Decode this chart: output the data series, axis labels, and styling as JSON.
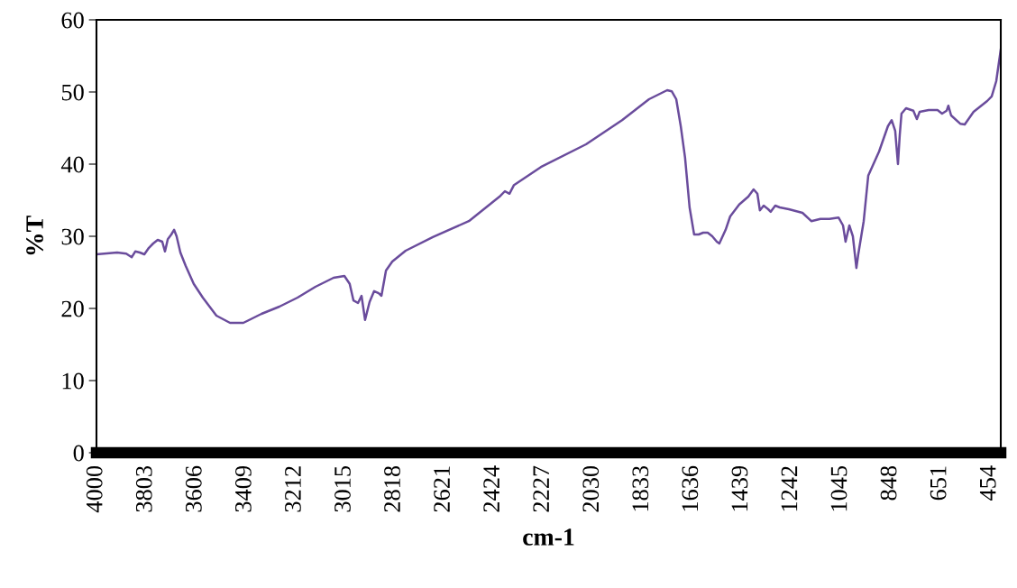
{
  "chart_data": {
    "type": "line",
    "xlabel": "cm-1",
    "ylabel": "%T",
    "x": [
      4000,
      3918,
      3882,
      3860,
      3846,
      3828,
      3810,
      3792,
      3775,
      3757,
      3739,
      3728,
      3717,
      3703,
      3692,
      3682,
      3667,
      3646,
      3614,
      3578,
      3524,
      3470,
      3417,
      3345,
      3274,
      3202,
      3131,
      3059,
      3016,
      2995,
      2980,
      2962,
      2948,
      2934,
      2916,
      2898,
      2880,
      2869,
      2851,
      2826,
      2773,
      2665,
      2522,
      2397,
      2379,
      2361,
      2343,
      2236,
      2057,
      1914,
      1807,
      1735,
      1717,
      1699,
      1681,
      1664,
      1646,
      1628,
      1610,
      1592,
      1574,
      1556,
      1538,
      1528,
      1503,
      1485,
      1449,
      1413,
      1392,
      1377,
      1367,
      1352,
      1334,
      1324,
      1306,
      1288,
      1252,
      1198,
      1163,
      1127,
      1091,
      1055,
      1037,
      1027,
      1012,
      998,
      984,
      977,
      955,
      937,
      894,
      859,
      844,
      830,
      819,
      812,
      805,
      787,
      758,
      744,
      733,
      697,
      662,
      644,
      626,
      619,
      608,
      572,
      554,
      519,
      465,
      447,
      429,
      411
    ],
    "series": [
      {
        "color": "#6a4c9c",
        "values": [
          27.5,
          27.75,
          27.6,
          27.1,
          27.9,
          27.75,
          27.5,
          28.4,
          29,
          29.5,
          29.25,
          27.9,
          29.6,
          30.25,
          30.9,
          30,
          27.75,
          25.9,
          23.4,
          21.5,
          19,
          18,
          18,
          19.25,
          20.25,
          21.5,
          23,
          24.25,
          24.5,
          23.4,
          21.1,
          20.75,
          21.75,
          18.4,
          20.9,
          22.4,
          22.1,
          21.75,
          25.25,
          26.5,
          28,
          29.9,
          32.1,
          35.6,
          36.25,
          35.9,
          37.1,
          39.6,
          42.75,
          46.1,
          49,
          50.25,
          50.1,
          49,
          45.25,
          40.9,
          34,
          30.25,
          30.25,
          30.5,
          30.5,
          30,
          29.25,
          29,
          30.9,
          32.75,
          34.4,
          35.5,
          36.5,
          35.9,
          33.6,
          34.25,
          33.75,
          33.4,
          34.25,
          34,
          33.75,
          33.25,
          32.1,
          32.4,
          32.4,
          32.6,
          31.5,
          29.25,
          31.5,
          30,
          25.6,
          27.4,
          32.1,
          38.4,
          41.75,
          45.25,
          46.1,
          44.6,
          40,
          44,
          47,
          47.75,
          47.4,
          46.25,
          47.25,
          47.5,
          47.5,
          47,
          47.4,
          48.1,
          46.75,
          45.6,
          45.5,
          47.25,
          48.75,
          49.4,
          51.5,
          55.9
        ]
      }
    ],
    "xlim": [
      4000,
      411
    ],
    "xticks": [
      4000,
      3803,
      3606,
      3409,
      3212,
      3015,
      2818,
      2621,
      2424,
      2227,
      2030,
      1833,
      1636,
      1439,
      1242,
      1045,
      848,
      651,
      454
    ],
    "ylim": [
      0,
      60
    ],
    "yticks": [
      0,
      10,
      20,
      30,
      40,
      50,
      60
    ],
    "grid": false,
    "legend": false,
    "marker": "none",
    "line_style": "solid"
  }
}
